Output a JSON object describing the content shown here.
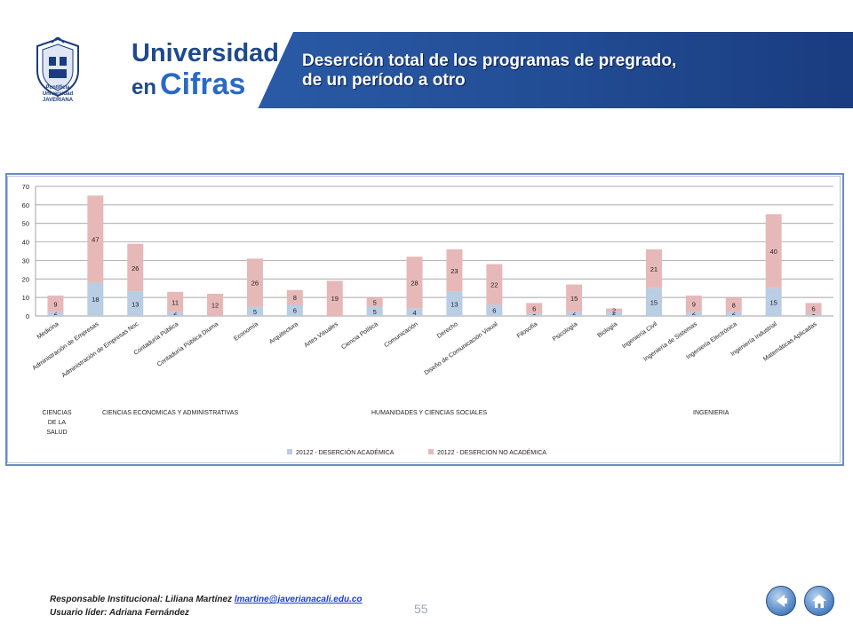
{
  "header": {
    "brand_line1": "Universidad",
    "brand_line2_small": "en",
    "brand_line2_big": "Cifras",
    "logo_caption": "Pontificia Universidad JAVERIANA",
    "title_line1": "Deserción total de los programas de pregrado,",
    "title_line2": "de un período a otro"
  },
  "chart_data": {
    "type": "bar",
    "stacked": true,
    "ylim": [
      0,
      70
    ],
    "yticks": [
      0,
      10,
      20,
      30,
      40,
      50,
      60,
      70
    ],
    "grid": true,
    "legend_position": "bottom",
    "categories": [
      "Medicina",
      "Administración de Empresas",
      "Administración de Empresas Noc",
      "Contaduría Pública",
      "Contaduría Pública Diurna",
      "Economía",
      "Arquitectura",
      "Artes Visuales",
      "Ciencia Política",
      "Comunicación",
      "Derecho",
      "Diseño de Comunicación Visual",
      "Filosofía",
      "Psicología",
      "Biología",
      "Ingeniería Civil",
      "Ingeniería de Sistemas",
      "Ingeniería Electrónica",
      "Ingeniería Industrial",
      "Matemáticas Aplicadas"
    ],
    "series": [
      {
        "name": "20122 - DESERCIÓN ACADÉMICA",
        "color": "#b9cde5",
        "values": [
          2,
          18,
          13,
          2,
          0,
          5,
          6,
          0,
          5,
          4,
          13,
          6,
          1,
          2,
          2,
          15,
          2,
          2,
          15,
          1
        ]
      },
      {
        "name": "20122 - DESERCION NO ACADÉMICA",
        "color": "#e6b9b8",
        "values": [
          9,
          47,
          26,
          11,
          12,
          26,
          8,
          19,
          5,
          28,
          23,
          22,
          6,
          15,
          2,
          21,
          9,
          8,
          40,
          6
        ]
      }
    ],
    "groups": [
      {
        "label": "CIENCIAS DE LA SALUD",
        "start": 0,
        "end": 0
      },
      {
        "label": "CIENCIAS ECONOMICAS Y ADMINISTRATIVAS",
        "start": 1,
        "end": 5
      },
      {
        "label": "HUMANIDADES Y CIENCIAS SOCIALES",
        "start": 6,
        "end": 14
      },
      {
        "label": "INGENIERIA",
        "start": 15,
        "end": 19
      }
    ]
  },
  "footer": {
    "line1_prefix": "Responsable Institucional: Liliana Martínez",
    "email": "lmartine@javerianacali.edu.co",
    "line2": "Usuario líder: Adriana Fernández",
    "page_number": "55"
  },
  "nav": {
    "back_icon": "back-arrow-icon",
    "home_icon": "home-icon"
  }
}
